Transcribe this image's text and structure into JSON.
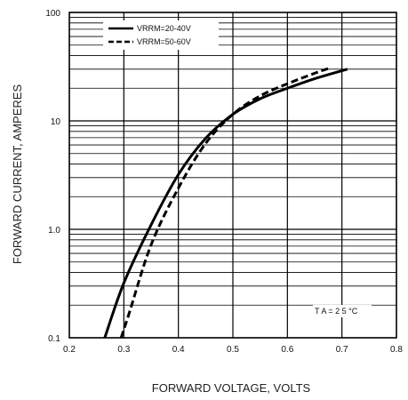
{
  "chart_data": {
    "type": "line",
    "title": "",
    "xlabel": "FORWARD VOLTAGE, VOLTS",
    "ylabel": "FORWARD CURRENT, AMPERES",
    "xlim": [
      0.2,
      0.8
    ],
    "ylim": [
      0.1,
      100
    ],
    "yscale": "log",
    "grid": true,
    "x_ticks": [
      "0.2",
      "0.3",
      "0.4",
      "0.5",
      "0.6",
      "0.7",
      "0.8"
    ],
    "y_ticks": [
      "0.1",
      "1.0",
      "10",
      "100"
    ],
    "legend_placement": "top-left",
    "annotation": "T A = 2 5 °C",
    "series": [
      {
        "name": "VRRM=20-40V",
        "style": "solid",
        "color": "#000000",
        "points": [
          [
            0.265,
            0.1
          ],
          [
            0.3,
            0.32
          ],
          [
            0.35,
            1.1
          ],
          [
            0.4,
            3.2
          ],
          [
            0.45,
            6.9
          ],
          [
            0.5,
            11.5
          ],
          [
            0.55,
            16.0
          ],
          [
            0.6,
            20.0
          ],
          [
            0.65,
            24.5
          ],
          [
            0.71,
            30.0
          ]
        ]
      },
      {
        "name": "VRRM=50-60V",
        "style": "dashed",
        "color": "#000000",
        "points": [
          [
            0.295,
            0.1
          ],
          [
            0.31,
            0.17
          ],
          [
            0.35,
            0.72
          ],
          [
            0.4,
            2.4
          ],
          [
            0.45,
            6.2
          ],
          [
            0.5,
            11.5
          ],
          [
            0.55,
            17.0
          ],
          [
            0.6,
            22.0
          ],
          [
            0.65,
            27.5
          ],
          [
            0.68,
            31.0
          ]
        ]
      }
    ]
  }
}
